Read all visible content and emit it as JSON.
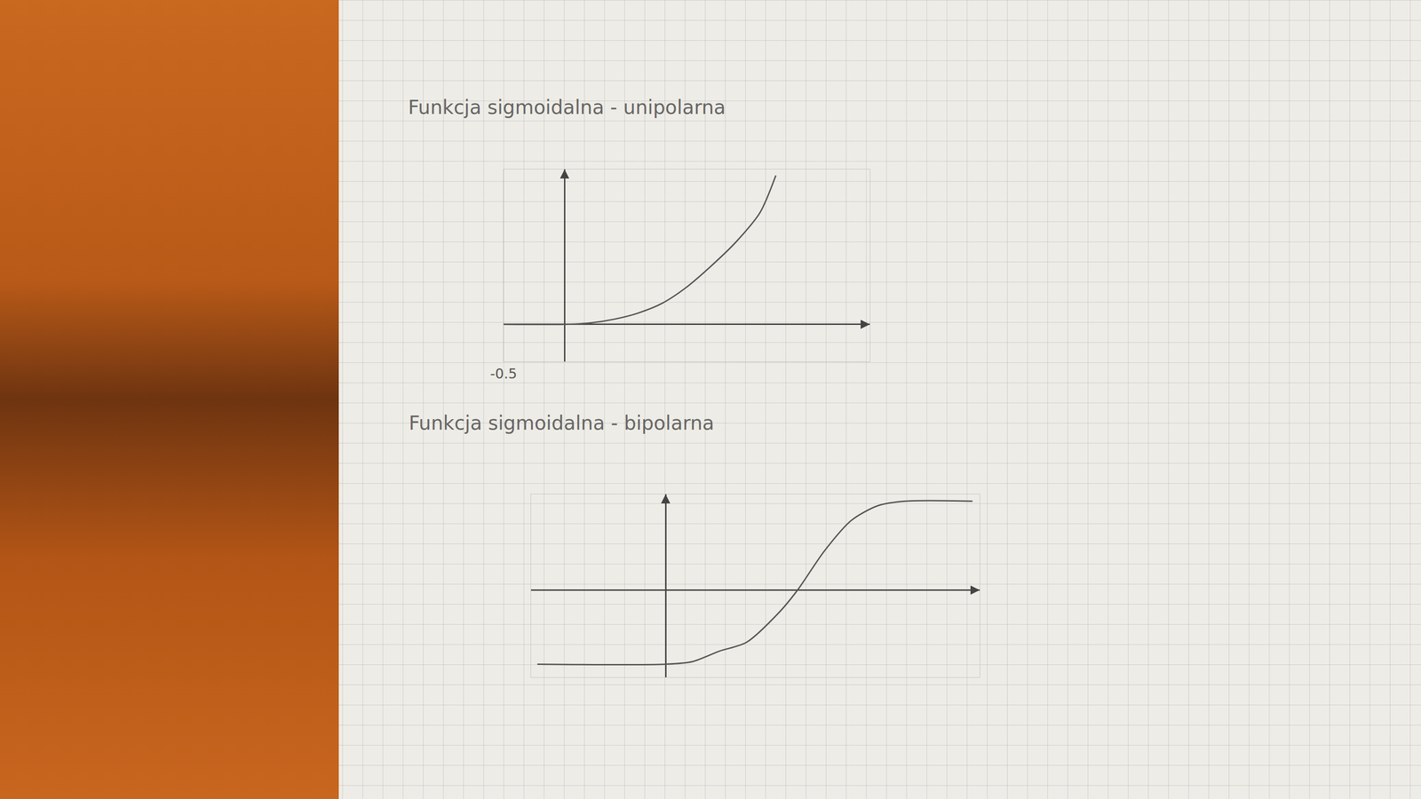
{
  "chart_data": [
    {
      "type": "line",
      "title": "Funkcja sigmoidalna - unipolarna",
      "x": [
        -0.5,
        0,
        0.2,
        0.4,
        0.6,
        0.8,
        1.0,
        1.2,
        1.4,
        1.6,
        1.73
      ],
      "values": [
        0,
        0,
        0.01,
        0.04,
        0.09,
        0.17,
        0.3,
        0.47,
        0.66,
        0.9,
        1.2
      ],
      "xlim": [
        -0.5,
        2.5
      ],
      "ylim": [
        -0.3,
        1.25
      ],
      "xticks": [
        -0.5
      ],
      "yticks": [],
      "tick_labels": "x",
      "grid": false,
      "color": "#555555"
    },
    {
      "type": "line",
      "title": "Funkcja sigmoidalna - bipolarna",
      "x": [
        -1.43,
        0,
        0.3,
        0.6,
        0.9,
        1.27,
        1.47,
        1.77,
        2.07,
        2.37,
        2.67,
        3.42
      ],
      "values": [
        -0.85,
        -0.85,
        -0.82,
        -0.7,
        -0.6,
        -0.25,
        0,
        0.45,
        0.8,
        0.97,
        1.02,
        1.02
      ],
      "xlim": [
        -1.5,
        3.5
      ],
      "ylim": [
        -1,
        1.1
      ],
      "xticks": [],
      "yticks": [],
      "tick_labels": false,
      "grid": false,
      "color": "#555555"
    }
  ]
}
